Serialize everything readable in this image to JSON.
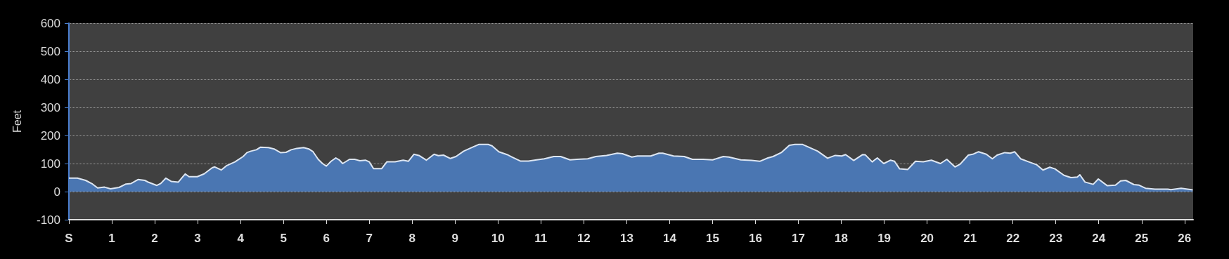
{
  "chart_data": {
    "type": "area",
    "ylabel": "Feet",
    "grid": "y",
    "marker": "none",
    "line_style": "solid",
    "xlim": [
      0,
      26.2
    ],
    "ylim": [
      -100,
      600
    ],
    "xticks": [
      {
        "value": 0,
        "label": "S"
      },
      1,
      2,
      3,
      4,
      5,
      6,
      7,
      8,
      9,
      10,
      11,
      12,
      13,
      14,
      15,
      16,
      17,
      18,
      19,
      20,
      21,
      22,
      23,
      24,
      25,
      26
    ],
    "yticks": [
      -100,
      0,
      100,
      200,
      300,
      400,
      500,
      600
    ],
    "series": [
      {
        "color": "#4a76b2",
        "x": [
          0,
          0.2,
          0.39,
          0.55,
          0.67,
          0.83,
          0.97,
          1.17,
          1.33,
          1.45,
          1.61,
          1.77,
          1.86,
          2.05,
          2.14,
          2.26,
          2.39,
          2.55,
          2.71,
          2.8,
          2.99,
          3.15,
          3.34,
          3.4,
          3.55,
          3.68,
          3.87,
          4.06,
          4.15,
          4.24,
          4.37,
          4.46,
          4.65,
          4.78,
          4.93,
          5.06,
          5.18,
          5.31,
          5.47,
          5.59,
          5.69,
          5.81,
          5.91,
          6,
          6.11,
          6.22,
          6.3,
          6.38,
          6.54,
          6.66,
          6.78,
          6.91,
          7,
          7.1,
          7.29,
          7.41,
          7.6,
          7.79,
          7.91,
          8.04,
          8.17,
          8.33,
          8.51,
          8.61,
          8.73,
          8.89,
          9.02,
          9.2,
          9.39,
          9.55,
          9.77,
          9.86,
          10.02,
          10.21,
          10.33,
          10.52,
          10.71,
          10.9,
          11.08,
          11.3,
          11.46,
          11.68,
          11.84,
          12.09,
          12.28,
          12.53,
          12.78,
          12.9,
          13.12,
          13.25,
          13.4,
          13.56,
          13.75,
          13.84,
          14.09,
          14.34,
          14.53,
          14.78,
          15,
          15.25,
          15.38,
          15.66,
          15.91,
          16.1,
          16.29,
          16.41,
          16.6,
          16.79,
          16.92,
          17.1,
          17.23,
          17.45,
          17.68,
          17.86,
          18.01,
          18.1,
          18.29,
          18.5,
          18.56,
          18.72,
          18.84,
          18.99,
          19.15,
          19.24,
          19.36,
          19.55,
          19.73,
          19.91,
          20.1,
          20.31,
          20.46,
          20.65,
          20.77,
          20.96,
          21.08,
          21.2,
          21.38,
          21.52,
          21.63,
          21.81,
          21.94,
          22.04,
          22.18,
          22.37,
          22.55,
          22.7,
          22.86,
          22.98,
          23.19,
          23.35,
          23.5,
          23.56,
          23.68,
          23.87,
          23.99,
          24.2,
          24.39,
          24.51,
          24.63,
          24.82,
          24.94,
          25.09,
          25.31,
          25.61,
          25.68,
          25.92,
          26.19
        ],
        "values": [
          48,
          48,
          40,
          27,
          13,
          16,
          10,
          15,
          27,
          29,
          43,
          40,
          33,
          22,
          29,
          48,
          36,
          34,
          63,
          53,
          53,
          63,
          85,
          88,
          77,
          93,
          106,
          125,
          139,
          144,
          149,
          158,
          157,
          152,
          139,
          140,
          149,
          154,
          157,
          152,
          142,
          115,
          100,
          91,
          108,
          120,
          113,
          100,
          115,
          115,
          110,
          112,
          106,
          82,
          82,
          106,
          106,
          112,
          108,
          133,
          128,
          112,
          133,
          128,
          130,
          118,
          125,
          144,
          157,
          168,
          168,
          163,
          142,
          132,
          123,
          109,
          109,
          113,
          117,
          125,
          125,
          113,
          115,
          117,
          125,
          129,
          137,
          135,
          123,
          127,
          127,
          127,
          137,
          137,
          127,
          125,
          115,
          115,
          113,
          125,
          123,
          113,
          111,
          108,
          120,
          125,
          139,
          165,
          168,
          168,
          159,
          144,
          119,
          129,
          127,
          132,
          111,
          132,
          131,
          106,
          120,
          100,
          112,
          108,
          81,
          79,
          108,
          106,
          112,
          100,
          115,
          88,
          98,
          130,
          134,
          142,
          133,
          117,
          130,
          139,
          137,
          142,
          117,
          106,
          96,
          77,
          87,
          81,
          58,
          50,
          52,
          60,
          34,
          26,
          45,
          21,
          23,
          38,
          40,
          25,
          23,
          12,
          9,
          9,
          7,
          12,
          6
        ]
      }
    ]
  }
}
